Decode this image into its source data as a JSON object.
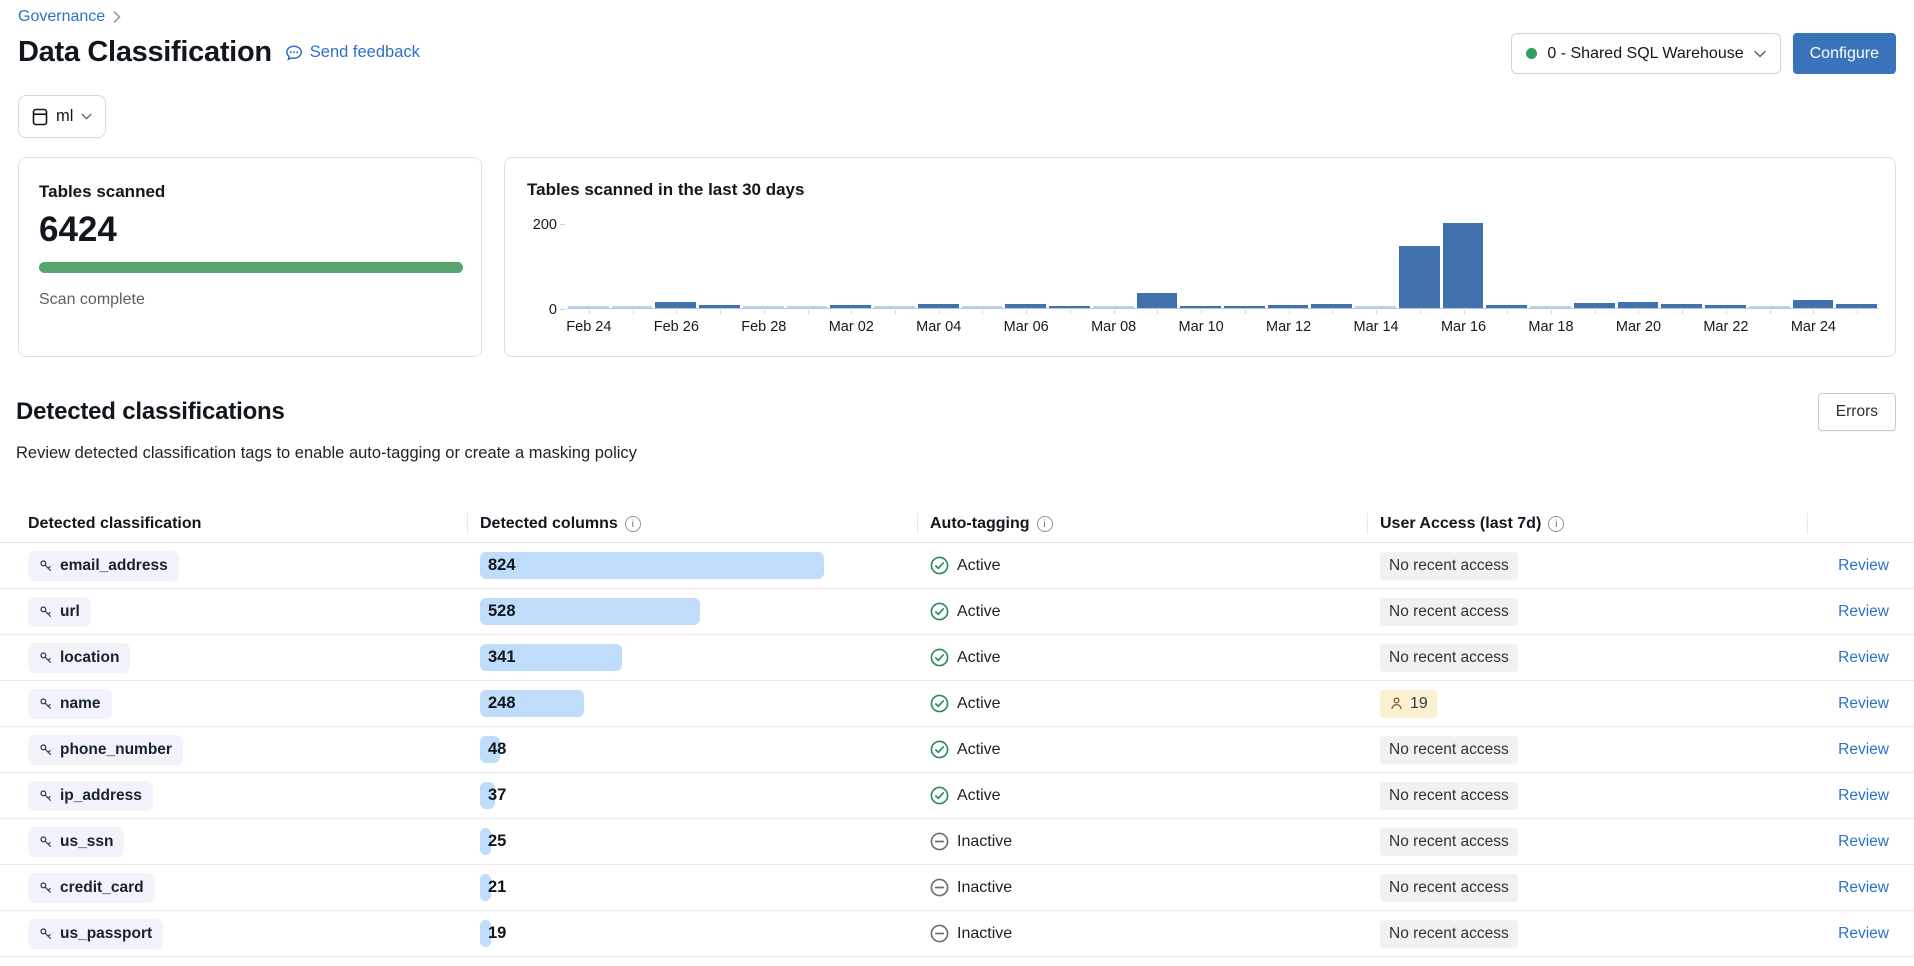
{
  "page": {
    "breadcrumb": "Governance",
    "title": "Data Classification",
    "feedback_link": "Send feedback",
    "warehouse_selector": "0 - Shared SQL Warehouse",
    "configure_button": "Configure",
    "catalog_selector": "ml"
  },
  "summary_card": {
    "title": "Tables scanned",
    "count": "6424",
    "status": "Scan complete",
    "progress_percent": 100
  },
  "chart_data": {
    "type": "bar",
    "title": "Tables scanned in the last 30 days",
    "xlabel": "",
    "ylabel": "",
    "ylim": [
      0,
      200
    ],
    "yticks": [
      0,
      200
    ],
    "grid": false,
    "legend": false,
    "x_tick_labels": [
      "Feb 24",
      "Feb 26",
      "Feb 28",
      "Mar 02",
      "Mar 04",
      "Mar 06",
      "Mar 08",
      "Mar 10",
      "Mar 12",
      "Mar 14",
      "Mar 16",
      "Mar 18",
      "Mar 20",
      "Mar 22",
      "Mar 24"
    ],
    "points": [
      {
        "date": "Feb 24",
        "value": 2,
        "faded": true
      },
      {
        "date": "Feb 25",
        "value": 2,
        "faded": true
      },
      {
        "date": "Feb 26",
        "value": 15,
        "faded": false
      },
      {
        "date": "Feb 27",
        "value": 8,
        "faded": false
      },
      {
        "date": "Feb 28",
        "value": 2,
        "faded": true
      },
      {
        "date": "Mar 01",
        "value": 2,
        "faded": true
      },
      {
        "date": "Mar 02",
        "value": 6,
        "faded": false
      },
      {
        "date": "Mar 03",
        "value": 2,
        "faded": true
      },
      {
        "date": "Mar 04",
        "value": 10,
        "faded": false
      },
      {
        "date": "Mar 05",
        "value": 3,
        "faded": true
      },
      {
        "date": "Mar 06",
        "value": 10,
        "faded": false
      },
      {
        "date": "Mar 07",
        "value": 4,
        "faded": false
      },
      {
        "date": "Mar 08",
        "value": 2,
        "faded": true
      },
      {
        "date": "Mar 09",
        "value": 35,
        "faded": false
      },
      {
        "date": "Mar 10",
        "value": 5,
        "faded": false
      },
      {
        "date": "Mar 11",
        "value": 5,
        "faded": false
      },
      {
        "date": "Mar 12",
        "value": 6,
        "faded": false
      },
      {
        "date": "Mar 13",
        "value": 10,
        "faded": false
      },
      {
        "date": "Mar 14",
        "value": 2,
        "faded": true
      },
      {
        "date": "Mar 15",
        "value": 145,
        "faded": false
      },
      {
        "date": "Mar 16",
        "value": 200,
        "faded": false
      },
      {
        "date": "Mar 17",
        "value": 8,
        "faded": false
      },
      {
        "date": "Mar 18",
        "value": 2,
        "faded": true
      },
      {
        "date": "Mar 19",
        "value": 12,
        "faded": false
      },
      {
        "date": "Mar 20",
        "value": 15,
        "faded": false
      },
      {
        "date": "Mar 21",
        "value": 10,
        "faded": false
      },
      {
        "date": "Mar 22",
        "value": 6,
        "faded": false
      },
      {
        "date": "Mar 23",
        "value": 2,
        "faded": true
      },
      {
        "date": "Mar 24",
        "value": 18,
        "faded": false
      },
      {
        "date": "Mar 25",
        "value": 10,
        "faded": false
      }
    ]
  },
  "section": {
    "title": "Detected classifications",
    "subtitle": "Review detected classification tags to enable auto-tagging or create a masking policy",
    "errors_button": "Errors"
  },
  "table": {
    "columns": [
      {
        "label": "Detected classification",
        "info": false
      },
      {
        "label": "Detected columns",
        "info": true
      },
      {
        "label": "Auto-tagging",
        "info": true
      },
      {
        "label": "User Access (last 7d)",
        "info": true
      },
      {
        "label": "",
        "info": false
      }
    ],
    "max_detected_columns": 824,
    "rows": [
      {
        "classification": "email_address",
        "detected_columns": 824,
        "auto_tagging": "Active",
        "user_access": "No recent access",
        "action": "Review"
      },
      {
        "classification": "url",
        "detected_columns": 528,
        "auto_tagging": "Active",
        "user_access": "No recent access",
        "action": "Review"
      },
      {
        "classification": "location",
        "detected_columns": 341,
        "auto_tagging": "Active",
        "user_access": "No recent access",
        "action": "Review"
      },
      {
        "classification": "name",
        "detected_columns": 248,
        "auto_tagging": "Active",
        "user_access": "19",
        "user_access_count": 19,
        "action": "Review"
      },
      {
        "classification": "phone_number",
        "detected_columns": 48,
        "auto_tagging": "Active",
        "user_access": "No recent access",
        "action": "Review"
      },
      {
        "classification": "ip_address",
        "detected_columns": 37,
        "auto_tagging": "Active",
        "user_access": "No recent access",
        "action": "Review"
      },
      {
        "classification": "us_ssn",
        "detected_columns": 25,
        "auto_tagging": "Inactive",
        "user_access": "No recent access",
        "action": "Review"
      },
      {
        "classification": "credit_card",
        "detected_columns": 21,
        "auto_tagging": "Inactive",
        "user_access": "No recent access",
        "action": "Review"
      },
      {
        "classification": "us_passport",
        "detected_columns": 19,
        "auto_tagging": "Inactive",
        "user_access": "No recent access",
        "action": "Review"
      }
    ]
  },
  "colors": {
    "link_blue": "#2d72c8",
    "primary_button": "#3973b9",
    "warehouse_status_green": "#2f9e63",
    "progress_green": "#57a46f",
    "chart_bar": "#4272ae",
    "chart_bar_faded": "#bcd2ec",
    "count_bar": "#bfdcfa",
    "tag_pill_bg": "#f2f3fa",
    "active_green": "#2e8b57",
    "inactive_gray": "#6f6f6f",
    "access_pill_gray": "#f1f1f1",
    "access_pill_yellow": "#fbf1d2",
    "person_icon_brown": "#8a5a33"
  }
}
